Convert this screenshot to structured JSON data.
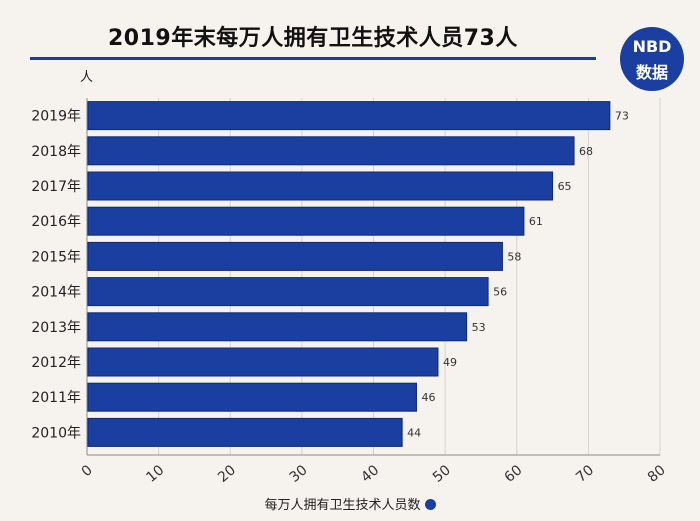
{
  "title": "2019年末每万人拥有卫生技术人员73人",
  "logo": {
    "line1": "NBD",
    "line2": "数据"
  },
  "unit_label": "人",
  "chart_data": {
    "type": "bar",
    "orientation": "horizontal",
    "categories": [
      "2019年",
      "2018年",
      "2017年",
      "2016年",
      "2015年",
      "2014年",
      "2013年",
      "2012年",
      "2011年",
      "2010年"
    ],
    "series": [
      {
        "name": "每万人拥有卫生技术人员数",
        "values": [
          73,
          68,
          65,
          61,
          58,
          56,
          53,
          49,
          46,
          44
        ]
      }
    ],
    "xlim": [
      0,
      80
    ],
    "xticks": [
      0,
      10,
      20,
      30,
      40,
      50,
      60,
      70,
      80
    ],
    "grid": true,
    "legend_position": "bottom",
    "bar_color": "#1a3fa0"
  }
}
